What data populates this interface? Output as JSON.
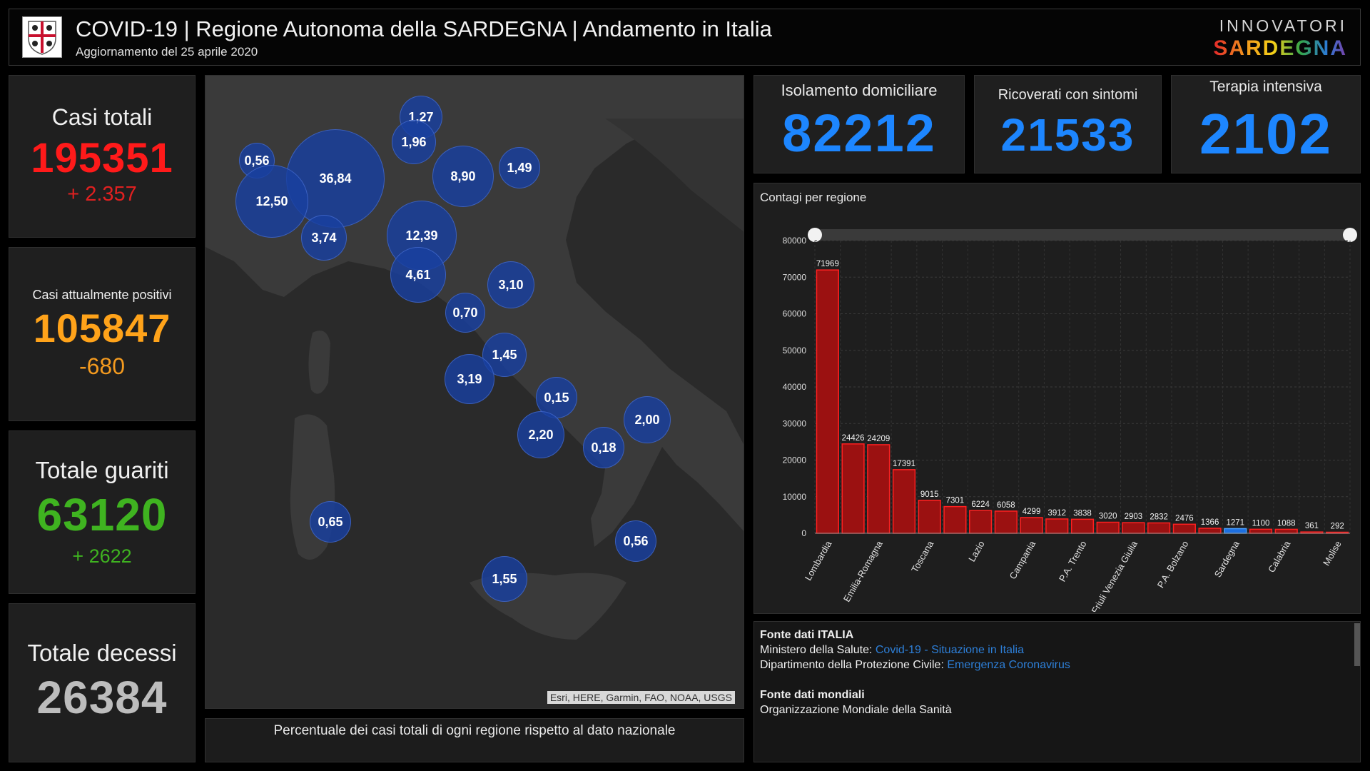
{
  "header": {
    "title": "COVID-19 | Regione Autonoma della SARDEGNA | Andamento in Italia",
    "subtitle": "Aggiornamento del 25 aprile 2020",
    "brand_top": "INNOVATORI",
    "brand_bottom": "SARDEGNA"
  },
  "stats": {
    "total": {
      "label": "Casi totali",
      "value": "195351",
      "delta": "+ 2.357",
      "color": "#ff1a1a"
    },
    "positive": {
      "label": "Casi attualmente positivi",
      "value": "105847",
      "delta": "-680",
      "color": "#ffa31a"
    },
    "recovered": {
      "label": "Totale guariti",
      "value": "63120",
      "delta": "+ 2622",
      "color": "#3fb320"
    },
    "deaths": {
      "label": "Totale decessi",
      "value": "26384",
      "color": "#bdbdbd"
    }
  },
  "kpis": {
    "home": {
      "label": "Isolamento domiciliare",
      "value": "82212"
    },
    "hospital": {
      "label": "Ricoverati con sintomi",
      "value": "21533"
    },
    "icu": {
      "label": "Terapia intensiva",
      "value": "2102"
    }
  },
  "map": {
    "bubbles": [
      "0,56",
      "36,84",
      "12,50",
      "3,74",
      "1,27",
      "1,96",
      "8,90",
      "1,49",
      "12,39",
      "4,61",
      "3,10",
      "0,70",
      "1,45",
      "3,19",
      "0,15",
      "2,20",
      "0,18",
      "2,00",
      "0,65",
      "0,56",
      "1,55"
    ],
    "attribution": "Esri, HERE, Garmin, FAO, NOAA, USGS",
    "caption": "Percentuale dei casi totali di ogni regione rispetto al dato nazionale"
  },
  "chart_data": {
    "type": "bar",
    "title": "Contagi per regione",
    "ylim": [
      0,
      80000
    ],
    "yticks": [
      0,
      10000,
      20000,
      30000,
      40000,
      50000,
      60000,
      70000,
      80000
    ],
    "values": [
      71969,
      24426,
      24209,
      17391,
      9015,
      7301,
      6224,
      6058,
      4299,
      3912,
      3838,
      3020,
      2903,
      2832,
      2476,
      1366,
      1271,
      1100,
      1088,
      361,
      292
    ],
    "tick_labels": [
      "Lombardia",
      "Emilia-Romagna",
      "Toscana",
      "Lazio",
      "Campania",
      "P.A. Trento",
      "Friuli Venezia Giulia",
      "P.A. Bolzano",
      "Sardegna",
      "Calabria",
      "Molise"
    ],
    "tick_positions": [
      0,
      2,
      4,
      6,
      8,
      10,
      12,
      14,
      16,
      18,
      20
    ],
    "bar_color": "#9b1111",
    "bar_edge": "#ff2020",
    "highlight_index": 16,
    "highlight_color": "#1d6fe0",
    "grid": true
  },
  "sources": {
    "italy_heading": "Fonte dati ITALIA",
    "ministry_label": "Ministero della Salute:",
    "ministry_link": "Covid-19 - Situazione in Italia",
    "civil_label": "Dipartimento della Protezione Civile:",
    "civil_link": "Emergenza Coronavirus",
    "world_heading": "Fonte dati mondiali",
    "who": "Organizzazione Mondiale della Sanità"
  }
}
